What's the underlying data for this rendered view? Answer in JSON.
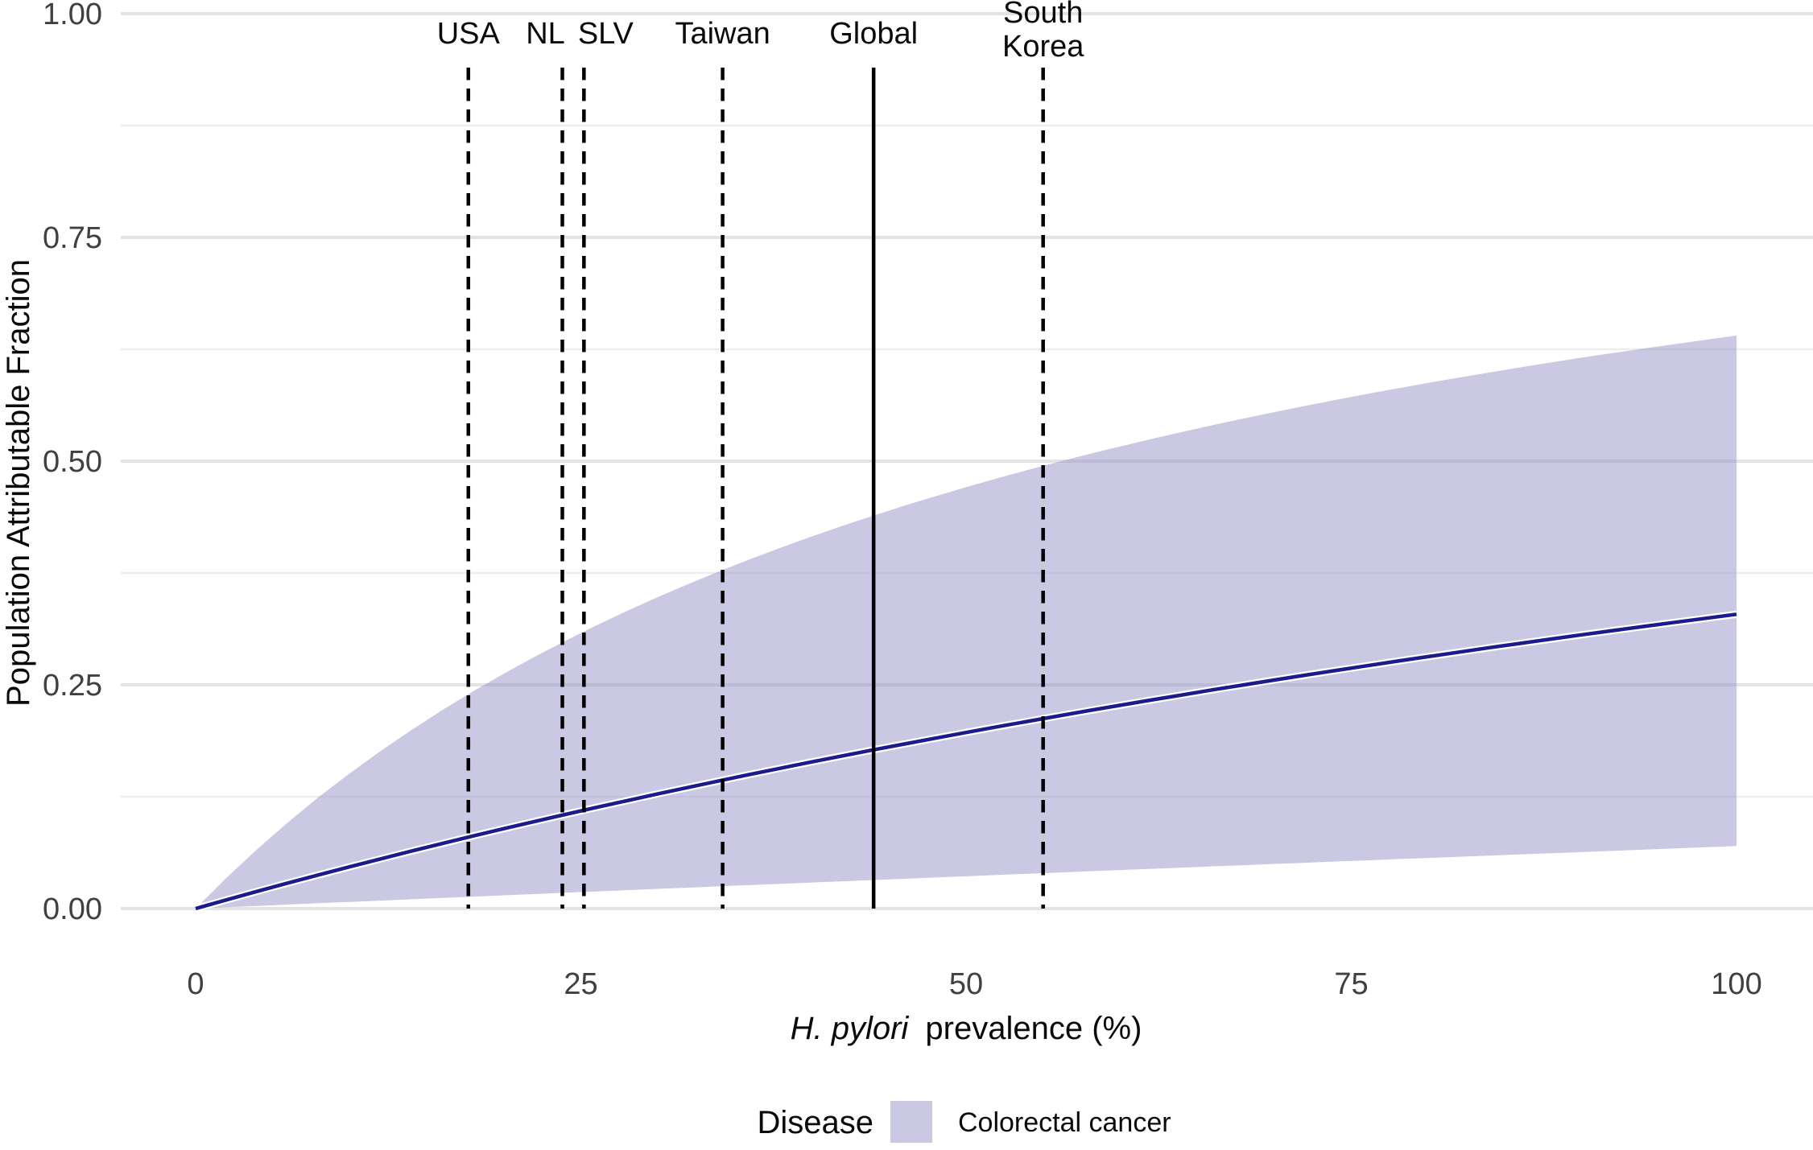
{
  "chart_data": {
    "type": "area",
    "xlabel_italic": "H. pylori",
    "xlabel_rest": "prevalence (%)",
    "ylabel": "Population Attributable Fraction",
    "xlim": [
      0,
      100
    ],
    "ylim": [
      0,
      1
    ],
    "grid": "horizontal-only",
    "x_ticks": [
      {
        "value": 0,
        "label": "0"
      },
      {
        "value": 25,
        "label": "25"
      },
      {
        "value": 50,
        "label": "50"
      },
      {
        "value": 75,
        "label": "75"
      },
      {
        "value": 100,
        "label": "100"
      }
    ],
    "y_ticks": [
      {
        "value": 0,
        "label": "0.00"
      },
      {
        "value": 0.25,
        "label": "0.25"
      },
      {
        "value": 0.5,
        "label": "0.50"
      },
      {
        "value": 0.75,
        "label": "0.75"
      },
      {
        "value": 1,
        "label": "1.00"
      }
    ],
    "y_minor_gridlines": [
      0.125,
      0.375,
      0.625,
      0.875
    ],
    "x": [
      0,
      2,
      4,
      6,
      8,
      10,
      12,
      14,
      16,
      18,
      20,
      22,
      24,
      26,
      28,
      30,
      32,
      34,
      36,
      38,
      40,
      42,
      44,
      46,
      48,
      50,
      52,
      54,
      56,
      58,
      60,
      62,
      64,
      66,
      68,
      70,
      72,
      74,
      76,
      78,
      80,
      82,
      84,
      86,
      88,
      90,
      92,
      94,
      96,
      98,
      100
    ],
    "series": [
      {
        "name": "PAF central estimate",
        "values": [
          0,
          0.0097,
          0.0192,
          0.0286,
          0.0377,
          0.0467,
          0.0555,
          0.0642,
          0.0727,
          0.0811,
          0.0893,
          0.0973,
          0.1052,
          0.113,
          0.1206,
          0.1282,
          0.1355,
          0.1428,
          0.15,
          0.157,
          0.1639,
          0.1707,
          0.1774,
          0.1839,
          0.1904,
          0.1968,
          0.2031,
          0.2092,
          0.2153,
          0.2213,
          0.2272,
          0.233,
          0.2387,
          0.2444,
          0.2499,
          0.2554,
          0.2608,
          0.2661,
          0.2713,
          0.2765,
          0.2816,
          0.2866,
          0.2916,
          0.2964,
          0.3013,
          0.306,
          0.3107,
          0.3153,
          0.3199,
          0.3244,
          0.3289
        ]
      },
      {
        "name": "PAF upper bound",
        "values": [
          0,
          0.0344,
          0.0665,
          0.0965,
          0.1247,
          0.1511,
          0.176,
          0.1995,
          0.2217,
          0.2427,
          0.2625,
          0.2814,
          0.2993,
          0.3164,
          0.3326,
          0.3481,
          0.3629,
          0.377,
          0.3905,
          0.4034,
          0.4159,
          0.4278,
          0.4392,
          0.4502,
          0.4607,
          0.4709,
          0.4807,
          0.4901,
          0.4992,
          0.508,
          0.5164,
          0.5246,
          0.5325,
          0.5402,
          0.5476,
          0.5548,
          0.5617,
          0.5684,
          0.575,
          0.5813,
          0.5875,
          0.5934,
          0.5992,
          0.6049,
          0.6104,
          0.6157,
          0.6209,
          0.6259,
          0.6308,
          0.6356,
          0.6403
        ]
      },
      {
        "name": "PAF lower bound",
        "values": [
          0,
          0.0015,
          0.003,
          0.0045,
          0.006,
          0.0074,
          0.0089,
          0.0104,
          0.0119,
          0.0133,
          0.0148,
          0.0162,
          0.0177,
          0.0191,
          0.0206,
          0.022,
          0.0234,
          0.0249,
          0.0263,
          0.0277,
          0.0291,
          0.0305,
          0.0319,
          0.0333,
          0.0347,
          0.0361,
          0.0375,
          0.0389,
          0.0403,
          0.0417,
          0.0431,
          0.0444,
          0.0458,
          0.0472,
          0.0485,
          0.0499,
          0.0512,
          0.0526,
          0.0539,
          0.0553,
          0.0566,
          0.0579,
          0.0593,
          0.0606,
          0.0619,
          0.0632,
          0.0645,
          0.0659,
          0.0672,
          0.0685,
          0.0698
        ]
      }
    ],
    "reference_lines": [
      {
        "label": "USA",
        "x": 17.7,
        "style": "dashed",
        "label_dx": 0
      },
      {
        "label": "NL",
        "x": 23.8,
        "style": "dashed",
        "label_dx": -21
      },
      {
        "label": "SLV",
        "x": 25.2,
        "style": "dashed",
        "label_dx": 27
      },
      {
        "label": "Taiwan",
        "x": 34.2,
        "style": "dashed",
        "label_dx": 0
      },
      {
        "label": "Global",
        "x": 44,
        "style": "solid",
        "label_dx": 0
      },
      {
        "label": "South Korea",
        "x": 55,
        "style": "dashed",
        "label_dx": 0,
        "label_lines": [
          "South",
          "Korea"
        ]
      }
    ],
    "legend": {
      "position": "bottom",
      "title": "Disease",
      "items": [
        {
          "label": "Colorectal cancer",
          "swatch_color": "rgba(149,146,199,0.5)"
        }
      ]
    },
    "colors": {
      "ribbon_fill": "rgba(149,146,199,0.5)",
      "center_line": "#1b1b8e",
      "line_casing": "#ffffff",
      "grid_major": "#e3e3e3",
      "grid_minor": "#eeeeee",
      "reference_line": "#000000",
      "tick_text": "#404040",
      "title_text": "#0a0a0a",
      "background": "#ffffff"
    }
  }
}
